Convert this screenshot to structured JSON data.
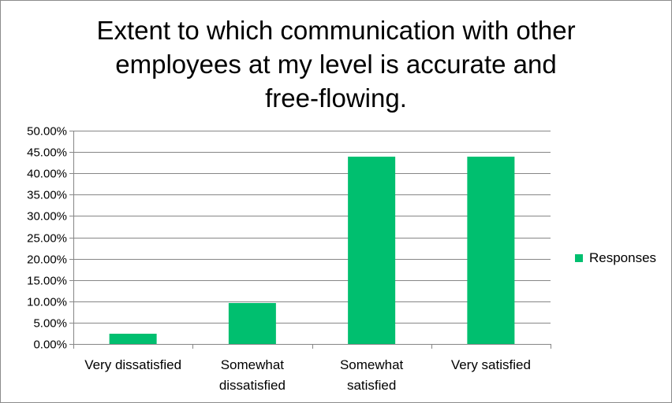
{
  "chart_data": {
    "type": "bar",
    "title": "Extent to which communication with other employees at my level is accurate and free-flowing.",
    "title_lines": [
      "Extent to which communication with other",
      "employees at my level is accurate and",
      "free-flowing."
    ],
    "categories": [
      "Very dissatisfied",
      "Somewhat dissatisfied",
      "Somewhat satisfied",
      "Very satisfied"
    ],
    "category_lines": [
      [
        "Very dissatisfied"
      ],
      [
        "Somewhat",
        "dissatisfied"
      ],
      [
        "Somewhat",
        "satisfied"
      ],
      [
        "Very satisfied"
      ]
    ],
    "series": [
      {
        "name": "Responses",
        "values": [
          2.4,
          9.6,
          43.9,
          43.9
        ],
        "color": "#00bf6f"
      }
    ],
    "xlabel": "",
    "ylabel": "",
    "ylim": [
      0,
      50
    ],
    "ytick_step": 5,
    "ytick_labels": [
      "0.00%",
      "5.00%",
      "10.00%",
      "15.00%",
      "20.00%",
      "25.00%",
      "30.00%",
      "35.00%",
      "40.00%",
      "45.00%",
      "50.00%"
    ],
    "grid": true,
    "legend": "right"
  },
  "colors": {
    "bar": "#00bf6f",
    "grid": "#868686",
    "axis": "#868686",
    "text": "#000000"
  }
}
